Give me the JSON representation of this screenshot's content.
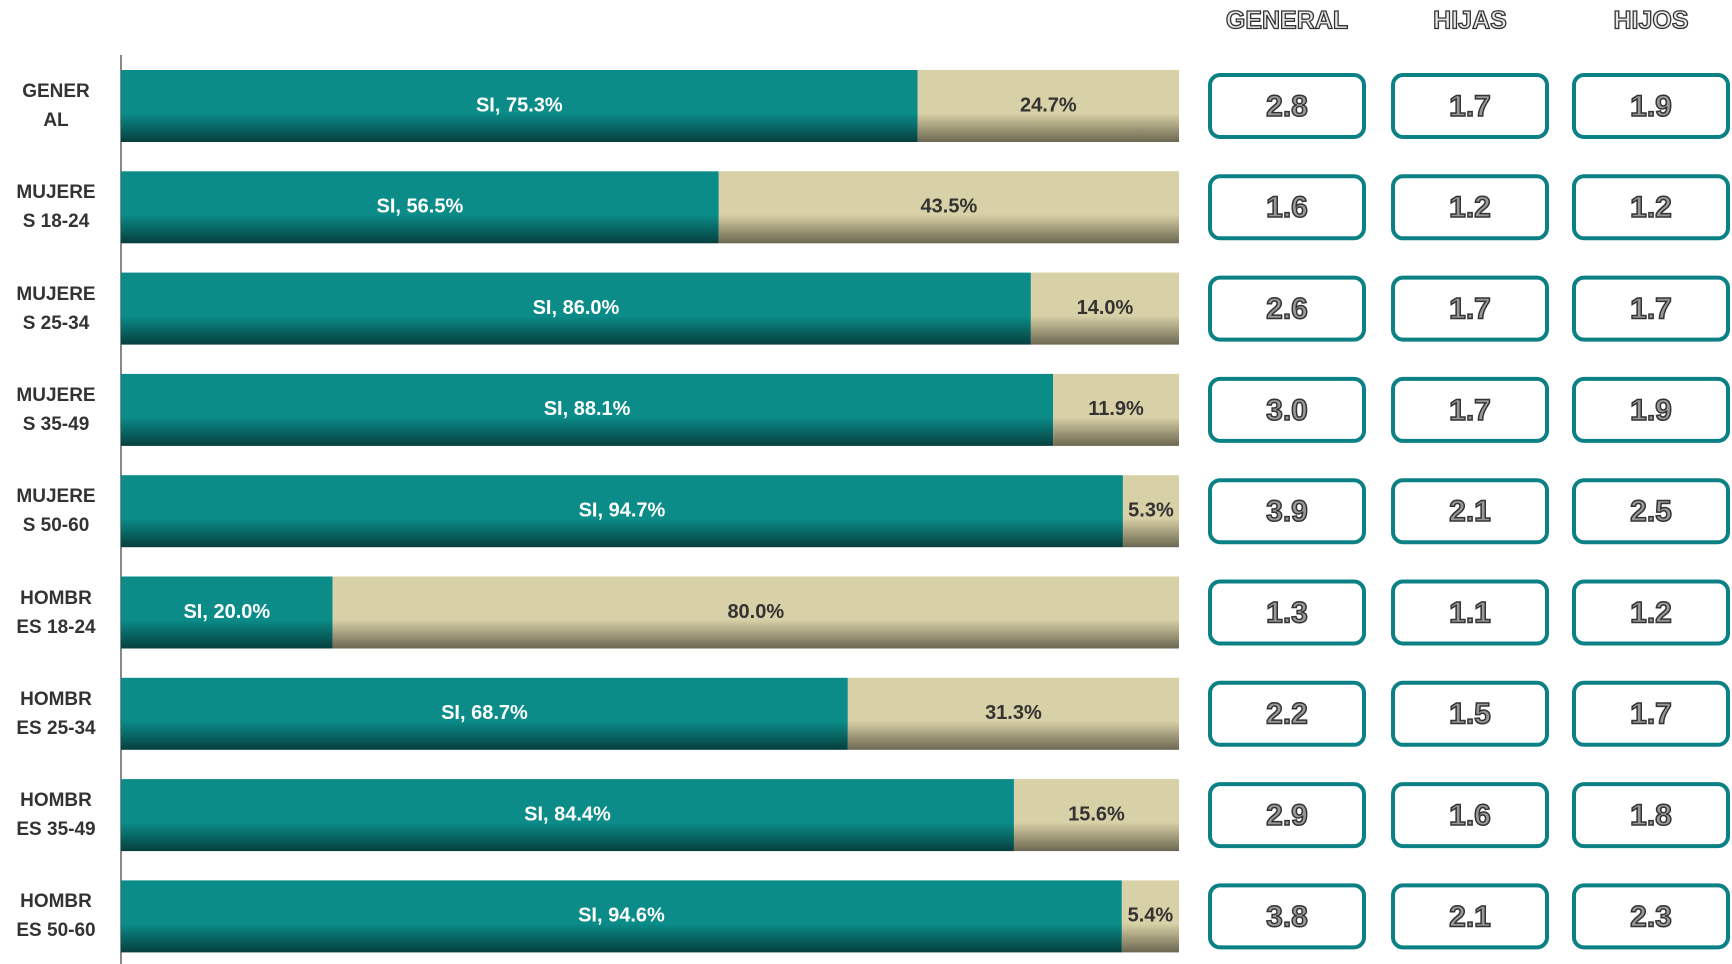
{
  "chart_data": {
    "type": "stacked-bar-horizontal",
    "categories": [
      "GENERAL",
      "MUJERES 18-24",
      "MUJERES 25-34",
      "MUJERES 35-49",
      "MUJERES 50-60",
      "HOMBRES 18-24",
      "HOMBRES 25-34",
      "HOMBRES 35-49",
      "HOMBRES 50-60"
    ],
    "xlim": [
      0,
      100
    ],
    "series": [
      {
        "name": "SI",
        "color": "#0b8c89",
        "values": [
          75.3,
          56.5,
          86.0,
          88.1,
          94.7,
          20.0,
          68.7,
          84.4,
          94.6
        ],
        "value_labels": [
          "SI, 75.3%",
          "SI, 56.5%",
          "SI, 86.0%",
          "SI, 88.1%",
          "SI, 94.7%",
          "SI, 20.0%",
          "SI, 68.7%",
          "SI, 84.4%",
          "SI, 94.6%"
        ]
      },
      {
        "color": "#d8d0a6",
        "values": [
          24.7,
          43.5,
          14.0,
          11.9,
          5.3,
          80.0,
          31.3,
          15.6,
          5.4
        ],
        "value_labels": [
          "24.7%",
          "43.5%",
          "14.0%",
          "11.9%",
          "5.3%",
          "80.0%",
          "31.3%",
          "15.6%",
          "5.4%"
        ]
      }
    ]
  },
  "table": {
    "columns": [
      "GENERAL",
      "HIJAS",
      "HIJOS"
    ],
    "rows": [
      [
        "2.8",
        "1.7",
        "1.9"
      ],
      [
        "1.6",
        "1.2",
        "1.2"
      ],
      [
        "2.6",
        "1.7",
        "1.7"
      ],
      [
        "3.0",
        "1.7",
        "1.9"
      ],
      [
        "3.9",
        "2.1",
        "2.5"
      ],
      [
        "1.3",
        "1.1",
        "1.2"
      ],
      [
        "2.2",
        "1.5",
        "1.7"
      ],
      [
        "2.9",
        "1.6",
        "1.8"
      ],
      [
        "3.8",
        "2.1",
        "2.3"
      ]
    ]
  }
}
